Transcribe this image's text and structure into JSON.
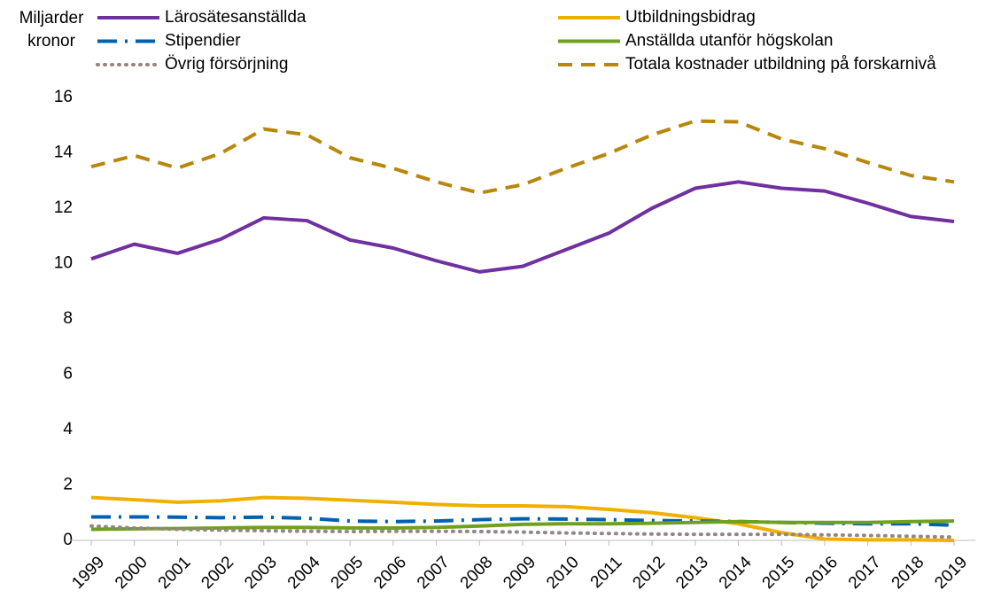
{
  "chart_data": {
    "type": "line",
    "y_label": "Miljarder kronor",
    "categories": [
      "1999",
      "2000",
      "2001",
      "2002",
      "2003",
      "2004",
      "2005",
      "2006",
      "2007",
      "2008",
      "2009",
      "2010",
      "2011",
      "2012",
      "2013",
      "2014",
      "2015",
      "2016",
      "2017",
      "2018",
      "2019"
    ],
    "series": [
      {
        "name": "Lärosätesanställda",
        "color": "#7030a0",
        "dash": "solid",
        "values": [
          10.17,
          10.7,
          10.37,
          10.88,
          11.65,
          11.55,
          10.85,
          10.56,
          10.1,
          9.7,
          9.9,
          10.5,
          11.1,
          12.0,
          12.72,
          12.95,
          12.72,
          12.62,
          12.18,
          11.7,
          11.52
        ]
      },
      {
        "name": "Utbildningsbidrag",
        "color": "#f0b000",
        "dash": "solid",
        "values": [
          1.55,
          1.47,
          1.38,
          1.43,
          1.55,
          1.52,
          1.45,
          1.38,
          1.3,
          1.25,
          1.25,
          1.22,
          1.12,
          1.0,
          0.82,
          0.6,
          0.28,
          0.05,
          0.02,
          0.02,
          0.0
        ]
      },
      {
        "name": "Stipendier",
        "color": "#0060b0",
        "dash": "dashdot",
        "values": [
          0.85,
          0.85,
          0.84,
          0.82,
          0.84,
          0.8,
          0.7,
          0.68,
          0.7,
          0.75,
          0.78,
          0.77,
          0.75,
          0.72,
          0.7,
          0.68,
          0.65,
          0.62,
          0.6,
          0.6,
          0.55
        ]
      },
      {
        "name": "Anställda utanför högskolan",
        "color": "#70a020",
        "dash": "solid",
        "values": [
          0.4,
          0.42,
          0.43,
          0.45,
          0.47,
          0.47,
          0.45,
          0.45,
          0.47,
          0.52,
          0.58,
          0.6,
          0.6,
          0.62,
          0.65,
          0.68,
          0.65,
          0.65,
          0.65,
          0.68,
          0.7
        ]
      },
      {
        "name": "Övrig försörjning",
        "color": "#958585",
        "dash": "dotted",
        "values": [
          0.52,
          0.45,
          0.4,
          0.37,
          0.35,
          0.33,
          0.32,
          0.33,
          0.33,
          0.32,
          0.3,
          0.27,
          0.25,
          0.23,
          0.22,
          0.22,
          0.22,
          0.2,
          0.18,
          0.15,
          0.12
        ]
      },
      {
        "name": "Totala kostnader utbildning på forskarnivå",
        "color": "#b8860b",
        "dash": "dashed",
        "values": [
          13.5,
          13.9,
          13.45,
          13.98,
          14.86,
          14.65,
          13.82,
          13.44,
          12.95,
          12.55,
          12.85,
          13.44,
          13.98,
          14.65,
          15.15,
          15.12,
          14.5,
          14.15,
          13.65,
          13.18,
          12.95
        ]
      }
    ],
    "ylim": [
      0,
      16
    ],
    "yticks": [
      0,
      2,
      4,
      6,
      8,
      10,
      12,
      14,
      16
    ],
    "grid": false
  }
}
